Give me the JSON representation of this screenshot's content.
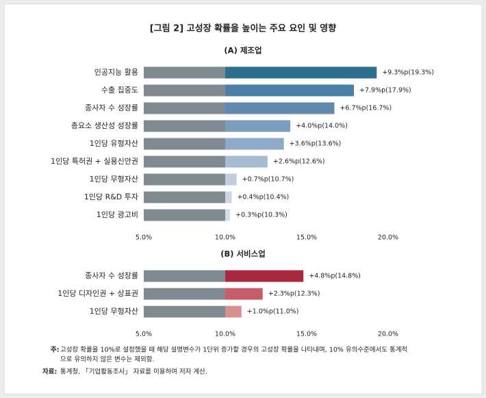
{
  "title": "[그림 2] 고성장 확률을 높이는 주요 요인 및 영향",
  "chart_data": [
    {
      "type": "bar",
      "orientation": "horizontal",
      "title": "(A) 제조업",
      "categories": [
        "인공지능 활용",
        "수출 집중도",
        "종사자 수 성장률",
        "총요소 생산성 성장률",
        "1인당 유형자산",
        "1인당 특허권 + 실용신안권",
        "1인당 무형자산",
        "1인당 R&D 투자",
        "1인당 광고비"
      ],
      "values": [
        19.3,
        17.9,
        16.7,
        14.0,
        13.6,
        12.6,
        10.7,
        10.4,
        10.3
      ],
      "value_labels": [
        "+9.3%p(19.3%)",
        "+7.9%p(17.9%)",
        "+6.7%p(16.7%)",
        "+4.0%p(14.0%)",
        "+3.6%p(13.6%)",
        "+2.6%p(12.6%)",
        "+0.7%p(10.7%)",
        "+0.4%p(10.4%)",
        "+0.3%p(10.3%)"
      ],
      "colors": [
        "#2e6f8e",
        "#4a80a4",
        "#6089ad",
        "#7b9dbd",
        "#8eaac8",
        "#a7bbd3",
        "#c0cde0",
        "#cbd5e5",
        "#d3dcea"
      ],
      "baseline": 10,
      "baseline_color": "#7f8b91",
      "xlim": [
        5,
        20
      ],
      "xticks": [
        {
          "value": 5,
          "label": "5.0%"
        },
        {
          "value": 10,
          "label": "10.0%"
        },
        {
          "value": 15,
          "label": "15.0%"
        },
        {
          "value": 20,
          "label": "20.0%"
        }
      ]
    },
    {
      "type": "bar",
      "orientation": "horizontal",
      "title": "(B) 서비스업",
      "categories": [
        "종사자 수 성장률",
        "1인당 디자인권 + 상표권",
        "1인당 무형자산"
      ],
      "values": [
        14.8,
        12.3,
        11.0
      ],
      "value_labels": [
        "+4.8%p(14.8%)",
        "+2.3%p(12.3%)",
        "+1.0%p(11.0%)"
      ],
      "colors": [
        "#a8283f",
        "#c75d68",
        "#d89090"
      ],
      "baseline": 10,
      "baseline_color": "#7f8b91",
      "xlim": [
        5,
        20
      ],
      "xticks": [
        {
          "value": 5,
          "label": "5.0%"
        },
        {
          "value": 10,
          "label": "10.0%"
        },
        {
          "value": 15,
          "label": "15.0%"
        },
        {
          "value": 20,
          "label": "20.0%"
        }
      ]
    }
  ],
  "note": {
    "label": "주:",
    "lines": [
      "고성장 확률을 10%로 설정했을 때 해당 설명변수가 1단위 증가할 경우의 고성장 확률을 나타내며, 10% 유의수준에서도 통계적",
      "으로 유의하지 않은 변수는 제외함."
    ]
  },
  "source": {
    "label": "자료:",
    "text": "통계청, 「기업활동조사」 자료를 이용하여 저자 계산."
  }
}
